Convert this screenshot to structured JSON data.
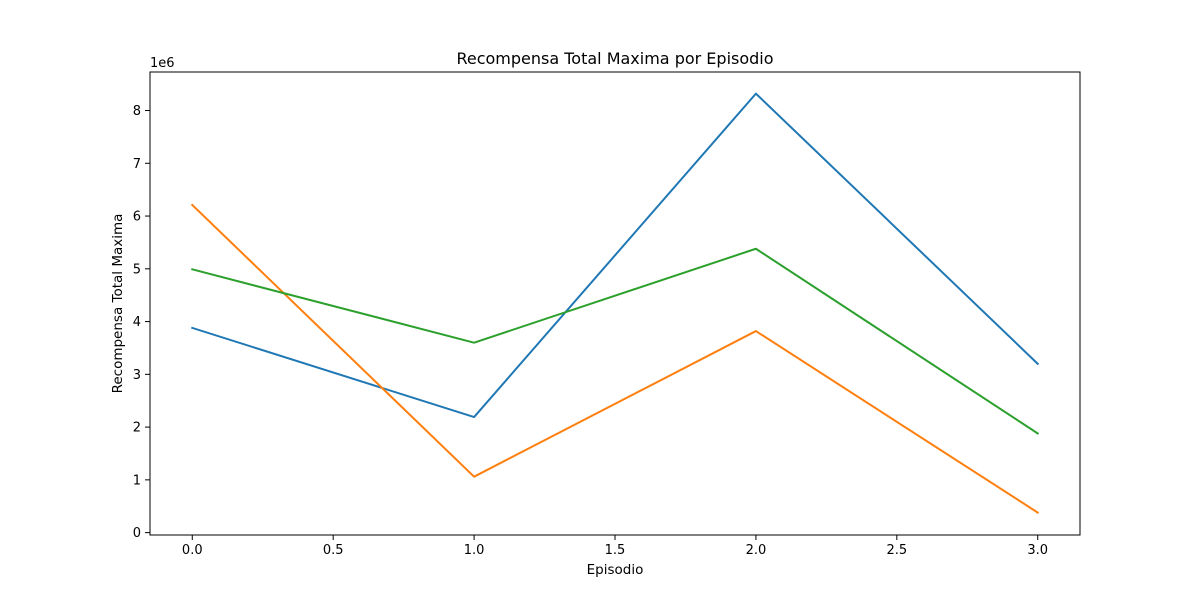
{
  "chart_data": {
    "type": "line",
    "title": "Recompensa Total Maxima por Episodio",
    "xlabel": "Episodio",
    "ylabel": "Recompensa Total Maxima",
    "y_offset_label": "1e6",
    "x": [
      0,
      1,
      2,
      3
    ],
    "xlim": [
      -0.15,
      3.15
    ],
    "ylim": [
      -0.045,
      8.73
    ],
    "x_ticks": [
      0.0,
      0.5,
      1.0,
      1.5,
      2.0,
      2.5,
      3.0
    ],
    "x_tick_labels": [
      "0.0",
      "0.5",
      "1.0",
      "1.5",
      "2.0",
      "2.5",
      "3.0"
    ],
    "y_ticks": [
      0,
      1,
      2,
      3,
      4,
      5,
      6,
      7,
      8
    ],
    "y_tick_labels": [
      "0",
      "1",
      "2",
      "3",
      "4",
      "5",
      "6",
      "7",
      "8"
    ],
    "grid": false,
    "legend": "none",
    "series": [
      {
        "color": "#1f77b4",
        "values": [
          3.88,
          2.19,
          8.32,
          3.2
        ]
      },
      {
        "color": "#ff7f0e",
        "values": [
          6.21,
          1.06,
          3.82,
          0.38
        ]
      },
      {
        "color": "#2ca02c",
        "values": [
          4.99,
          3.6,
          5.38,
          1.88
        ]
      }
    ]
  }
}
